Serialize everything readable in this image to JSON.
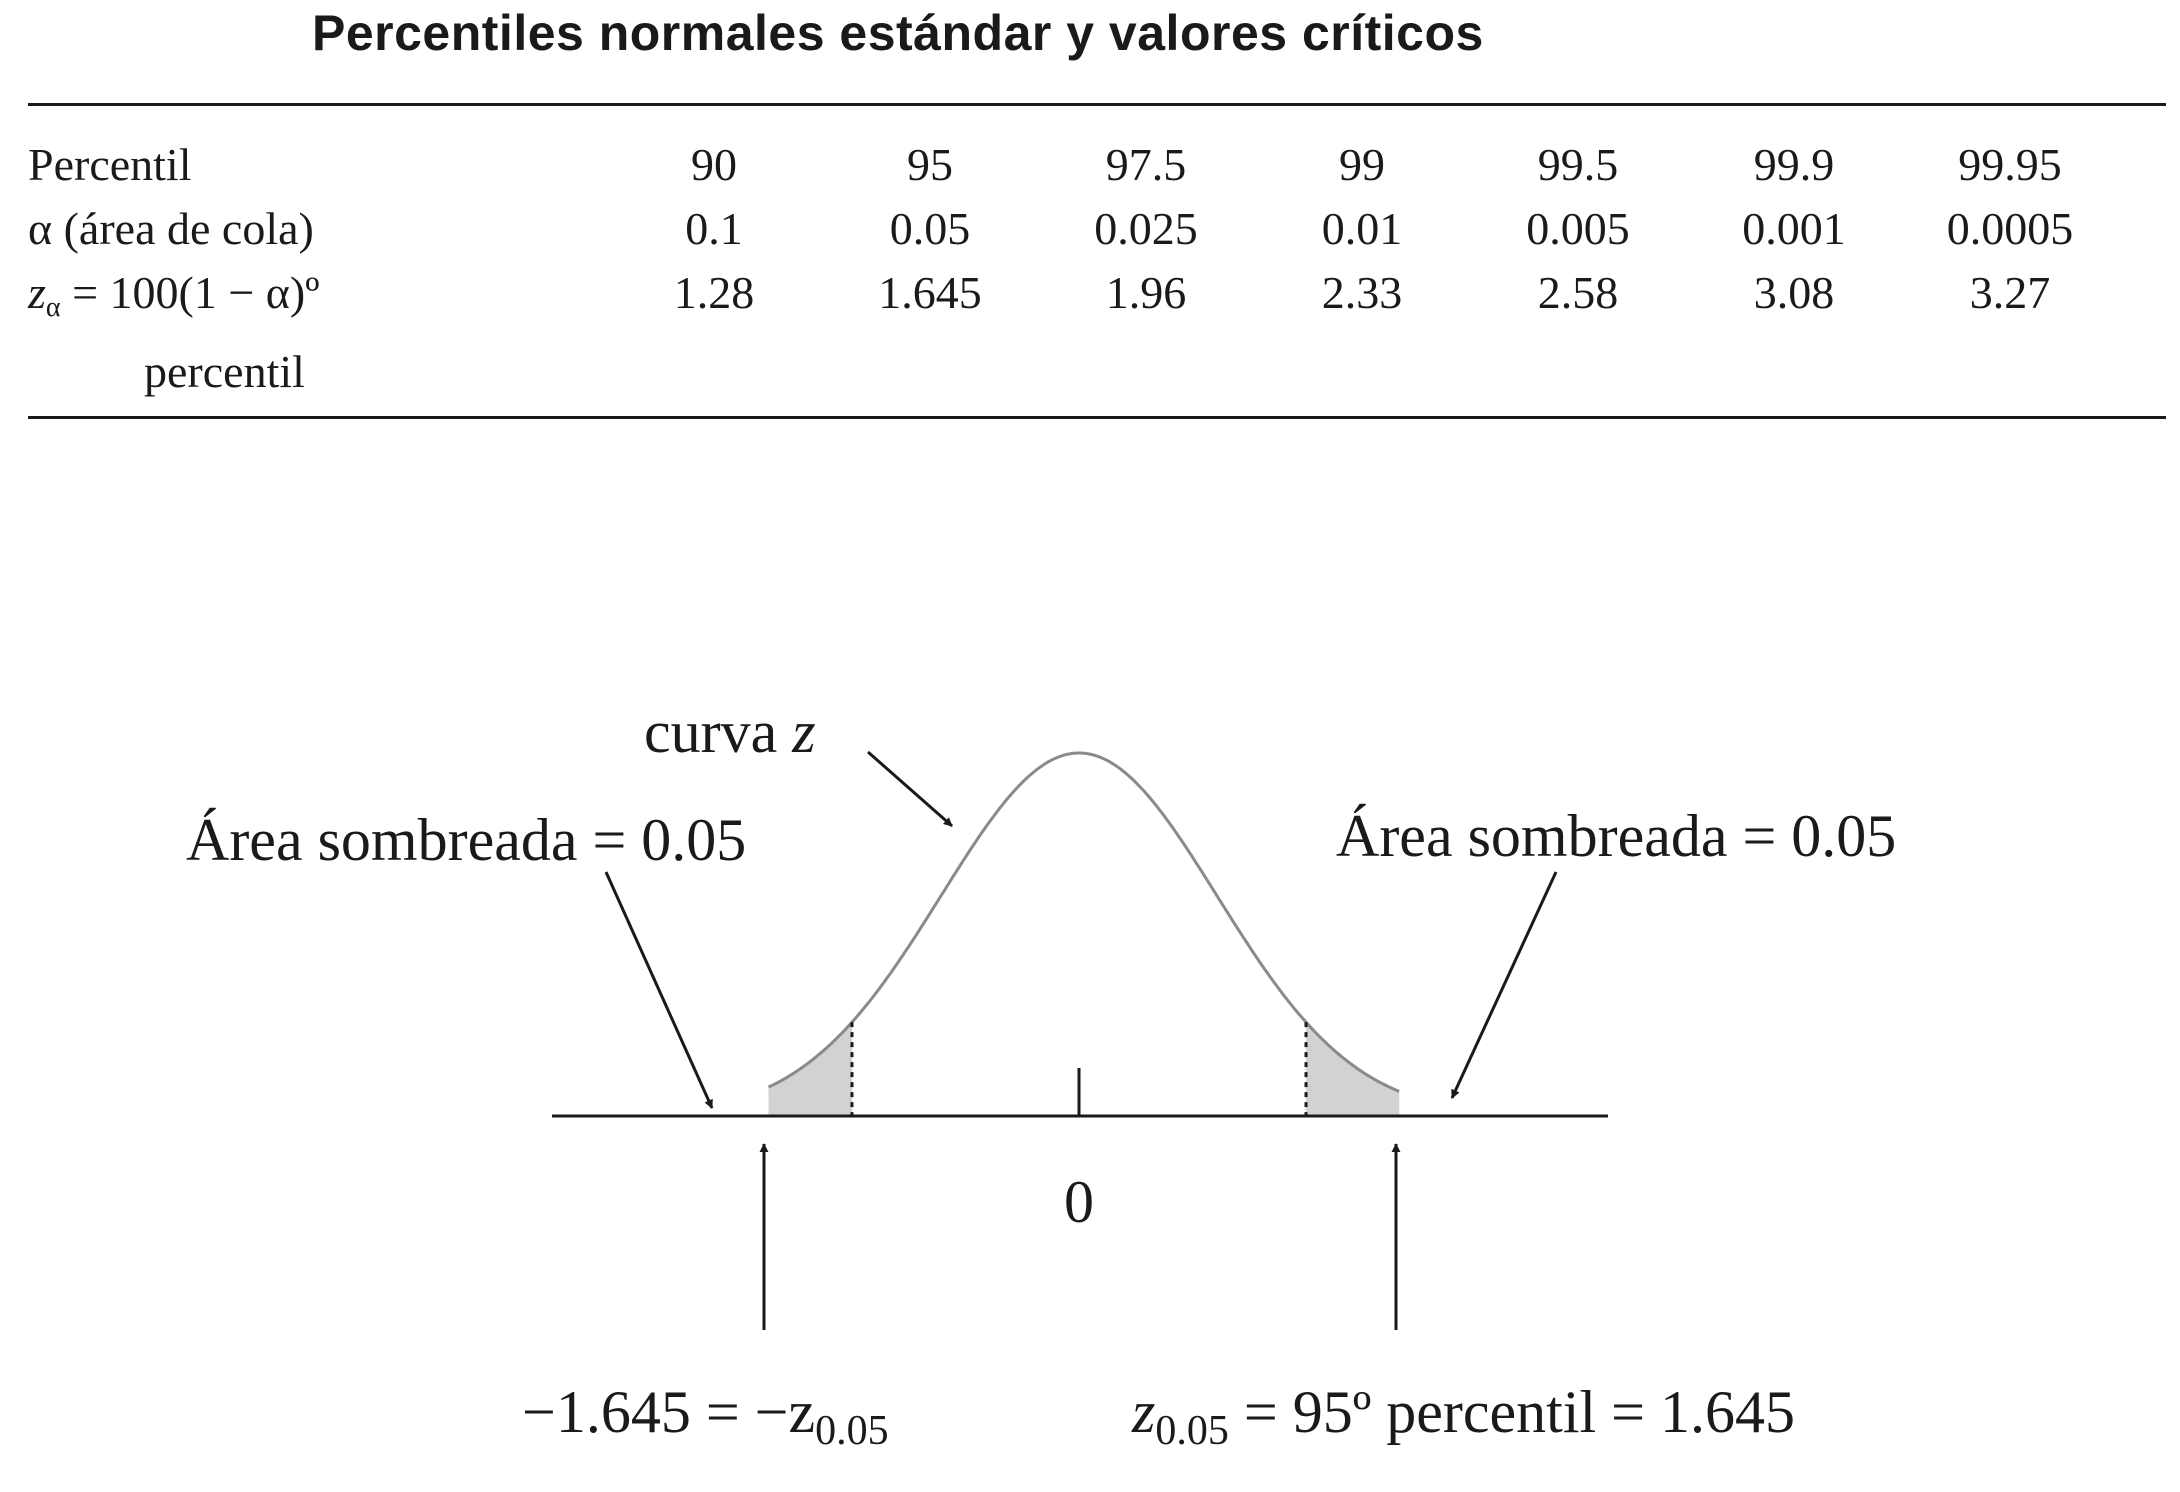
{
  "title": "Percentiles normales estándar y valores críticos",
  "table": {
    "row_percentil": {
      "label": "Percentil",
      "values": [
        "90",
        "95",
        "97.5",
        "99",
        "99.5",
        "99.9",
        "99.95"
      ]
    },
    "row_alpha": {
      "label": "α (área de cola)",
      "values": [
        "0.1",
        "0.05",
        "0.025",
        "0.01",
        "0.005",
        "0.001",
        "0.0005"
      ]
    },
    "row_z": {
      "label_z": "z",
      "label_sub": "α",
      "label_rest": " = 100(1 − α)º",
      "label_line2": "percentil",
      "values": [
        "1.28",
        "1.645",
        "1.96",
        "2.33",
        "2.58",
        "3.08",
        "3.27"
      ]
    }
  },
  "figure": {
    "curve_label_text": "curva ",
    "curve_label_var": "z",
    "left_area_label": "Área sombreada = 0.05",
    "right_area_label": "Área sombreada = 0.05",
    "center_tick_label": "0",
    "left_crit_main": "−1.645 = −z",
    "left_crit_sub": "0.05",
    "right_crit_z": "z",
    "right_crit_sub": "0.05",
    "right_crit_rest": " = 95º percentil = 1.645",
    "curve_color": "#8a8a8a",
    "shade_color": "#d2d2d2",
    "ink_color": "#1a1a1a"
  }
}
